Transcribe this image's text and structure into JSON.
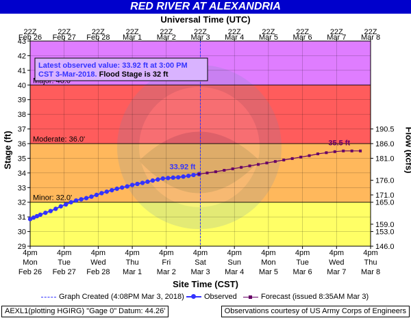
{
  "header": {
    "title": "RED RIVER AT ALEXANDRIA"
  },
  "axes": {
    "top_title": "Universal Time (UTC)",
    "bottom_title": "Site Time (CST)",
    "left_title": "Stage (ft)",
    "right_title": "Flow (kcfs)"
  },
  "info_box": {
    "line1": "Latest observed value: 33.92 ft at 3:00 PM",
    "line2_blue": "CST 3-Mar-2018.",
    "line2_black": "Flood Stage is 32 ft"
  },
  "legend": {
    "graph_created": "Graph Created (4:08PM Mar 3, 2018)",
    "observed": "Observed",
    "forecast": "Forecast (issued 8:35AM Mar 3)"
  },
  "footer": {
    "left": "AEXL1(plotting HGIRG) \"Gage 0\" Datum: 44.26'",
    "right": "Observations courtesy of US Army Corps of Engineers"
  },
  "chart_data": {
    "type": "line",
    "ylim": [
      29,
      43
    ],
    "y_ticks": [
      "29",
      "30",
      "31",
      "32",
      "33",
      "34",
      "35",
      "36",
      "37",
      "38",
      "39",
      "40",
      "41",
      "42",
      "43"
    ],
    "right_ticks": [
      {
        "stage": 30.0,
        "label": "153.0"
      },
      {
        "stage": 30.5,
        "label": "159.0"
      },
      {
        "stage": 32.0,
        "label": "165.0"
      },
      {
        "stage": 32.5,
        "label": "171.0"
      },
      {
        "stage": 33.5,
        "label": "176.0"
      },
      {
        "stage": 35.0,
        "label": "181.0"
      },
      {
        "stage": 36.0,
        "label": "186.0"
      },
      {
        "stage": 37.0,
        "label": "190.5"
      },
      {
        "stage": 29.0,
        "label": "146.0"
      }
    ],
    "x_days_bottom": [
      {
        "day": 0,
        "line1": "4pm",
        "line2": "Mon",
        "line3": "Feb 26"
      },
      {
        "day": 1,
        "line1": "4pm",
        "line2": "Tue",
        "line3": "Feb 27"
      },
      {
        "day": 2,
        "line1": "4pm",
        "line2": "Wed",
        "line3": "Feb 28"
      },
      {
        "day": 3,
        "line1": "4pm",
        "line2": "Thu",
        "line3": "Mar 1"
      },
      {
        "day": 4,
        "line1": "4pm",
        "line2": "Fri",
        "line3": "Mar 2"
      },
      {
        "day": 5,
        "line1": "4pm",
        "line2": "Sat",
        "line3": "Mar 3"
      },
      {
        "day": 6,
        "line1": "4pm",
        "line2": "Sun",
        "line3": "Mar 4"
      },
      {
        "day": 7,
        "line1": "4pm",
        "line2": "Mon",
        "line3": "Mar 5"
      },
      {
        "day": 8,
        "line1": "4pm",
        "line2": "Tue",
        "line3": "Mar 6"
      },
      {
        "day": 9,
        "line1": "4pm",
        "line2": "Wed",
        "line3": "Mar 7"
      },
      {
        "day": 10,
        "line1": "4pm",
        "line2": "Thu",
        "line3": "Mar 8"
      }
    ],
    "x_days_top": [
      {
        "day": 0,
        "line1": "22Z",
        "line2": "Feb 26"
      },
      {
        "day": 1,
        "line1": "22Z",
        "line2": "Feb 27"
      },
      {
        "day": 2,
        "line1": "22Z",
        "line2": "Feb 28"
      },
      {
        "day": 3,
        "line1": "22Z",
        "line2": "Mar 1"
      },
      {
        "day": 4,
        "line1": "22Z",
        "line2": "Mar 2"
      },
      {
        "day": 5,
        "line1": "22Z",
        "line2": "Mar 3"
      },
      {
        "day": 6,
        "line1": "22Z",
        "line2": "Mar 4"
      },
      {
        "day": 7,
        "line1": "22Z",
        "line2": "Mar 5"
      },
      {
        "day": 8,
        "line1": "22Z",
        "line2": "Mar 6"
      },
      {
        "day": 9,
        "line1": "22Z",
        "line2": "Mar 7"
      },
      {
        "day": 10,
        "line1": "22Z",
        "line2": "Mar 8"
      }
    ],
    "flood_categories": [
      {
        "label": "Major: 40.0'",
        "stage": 40.0,
        "color": "#ff5a5a",
        "from": 40,
        "to": 43
      },
      {
        "label": "Moderate: 36.0'",
        "stage": 36.0,
        "color": "#ffb75a",
        "from": 36,
        "to": 40
      },
      {
        "label": "Minor: 32.0'",
        "stage": 32.0,
        "color": "#ffff73",
        "from": 32,
        "to": 36
      },
      {
        "label": "",
        "stage": null,
        "color": "#ffff73",
        "from": 29,
        "to": 32
      },
      {
        "label": "",
        "stage": null,
        "color": "#dd85ff",
        "from": 43,
        "to": 44
      }
    ],
    "band_colors": {
      "above_major": "#df7dff",
      "major": "#ff5c5c",
      "moderate": "#ffb85c",
      "minor": "#ffff66",
      "action": "#ffff66"
    },
    "observed_color": "#3333ff",
    "forecast_color": "#660066",
    "graph_created_day": 5.0,
    "observed_points": [
      {
        "x": 0.0,
        "y": 30.85
      },
      {
        "x": 0.1,
        "y": 30.95
      },
      {
        "x": 0.2,
        "y": 31.05
      },
      {
        "x": 0.3,
        "y": 31.15
      },
      {
        "x": 0.45,
        "y": 31.28
      },
      {
        "x": 0.6,
        "y": 31.4
      },
      {
        "x": 0.75,
        "y": 31.55
      },
      {
        "x": 0.9,
        "y": 31.72
      },
      {
        "x": 1.05,
        "y": 31.85
      },
      {
        "x": 1.2,
        "y": 32.0
      },
      {
        "x": 1.35,
        "y": 32.12
      },
      {
        "x": 1.5,
        "y": 32.2
      },
      {
        "x": 1.65,
        "y": 32.28
      },
      {
        "x": 1.8,
        "y": 32.38
      },
      {
        "x": 1.95,
        "y": 32.5
      },
      {
        "x": 2.1,
        "y": 32.62
      },
      {
        "x": 2.25,
        "y": 32.72
      },
      {
        "x": 2.4,
        "y": 32.82
      },
      {
        "x": 2.55,
        "y": 32.92
      },
      {
        "x": 2.7,
        "y": 33.0
      },
      {
        "x": 2.85,
        "y": 33.08
      },
      {
        "x": 3.0,
        "y": 33.18
      },
      {
        "x": 3.15,
        "y": 33.25
      },
      {
        "x": 3.3,
        "y": 33.32
      },
      {
        "x": 3.45,
        "y": 33.4
      },
      {
        "x": 3.6,
        "y": 33.48
      },
      {
        "x": 3.75,
        "y": 33.55
      },
      {
        "x": 3.9,
        "y": 33.62
      },
      {
        "x": 4.05,
        "y": 33.65
      },
      {
        "x": 4.2,
        "y": 33.68
      },
      {
        "x": 4.35,
        "y": 33.7
      },
      {
        "x": 4.5,
        "y": 33.75
      },
      {
        "x": 4.65,
        "y": 33.8
      },
      {
        "x": 4.8,
        "y": 33.86
      },
      {
        "x": 4.96,
        "y": 33.92
      }
    ],
    "forecast_points": [
      {
        "x": 4.96,
        "y": 33.92
      },
      {
        "x": 5.2,
        "y": 34.0
      },
      {
        "x": 5.45,
        "y": 34.08
      },
      {
        "x": 5.7,
        "y": 34.18
      },
      {
        "x": 5.95,
        "y": 34.28
      },
      {
        "x": 6.2,
        "y": 34.38
      },
      {
        "x": 6.45,
        "y": 34.48
      },
      {
        "x": 6.7,
        "y": 34.58
      },
      {
        "x": 6.95,
        "y": 34.68
      },
      {
        "x": 7.2,
        "y": 34.78
      },
      {
        "x": 7.45,
        "y": 34.88
      },
      {
        "x": 7.7,
        "y": 34.98
      },
      {
        "x": 7.95,
        "y": 35.08
      },
      {
        "x": 8.2,
        "y": 35.18
      },
      {
        "x": 8.45,
        "y": 35.3
      },
      {
        "x": 8.7,
        "y": 35.38
      },
      {
        "x": 8.95,
        "y": 35.45
      },
      {
        "x": 9.2,
        "y": 35.5
      },
      {
        "x": 9.45,
        "y": 35.5
      },
      {
        "x": 9.7,
        "y": 35.5
      }
    ],
    "annotations": [
      {
        "text": "33.92 ft",
        "x": 4.96,
        "y": 33.92
      },
      {
        "text": "35.5 ft",
        "x": 9.2,
        "y": 35.5
      }
    ]
  }
}
